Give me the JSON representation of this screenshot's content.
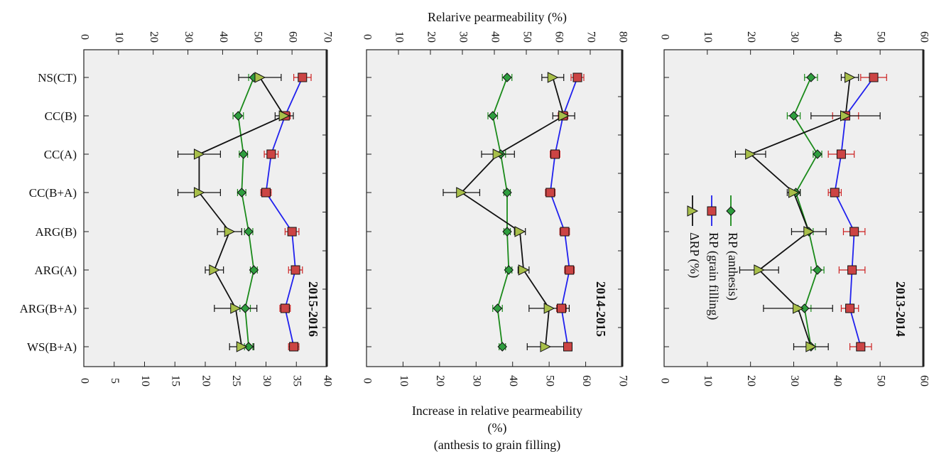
{
  "top_axis_title": "Relarive pearmeability (%)",
  "bottom_axis_title": [
    "Increase in relative pearmeability",
    "(%)",
    "(anthesis to grain filling)"
  ],
  "colors": {
    "anthesis": "#1a8a1a",
    "grain_filling": "#2020ee",
    "delta": "#111111",
    "anthesis_marker": "#2e9e3e",
    "grain_marker": "#cc4444",
    "delta_marker": "#a8bf4a",
    "error_anthesis": "#1a8a1a",
    "error_grain": "#cc2222",
    "panel_bg": "#efefef"
  },
  "legend": [
    {
      "key": "anthesis",
      "label": "RP (anthesis)"
    },
    {
      "key": "grain_filling",
      "label": "RP (grain filling)"
    },
    {
      "key": "delta",
      "label": "ΔRP (%)"
    }
  ],
  "chart_data": [
    {
      "type": "line",
      "season": "2015-2016",
      "categories": [
        "NS(CT)",
        "CC(B)",
        "CC(A)",
        "CC(B+A)",
        "ARG(B)",
        "ARG(A)",
        "ARG(B+A)",
        "WS(B+A)"
      ],
      "top_ticks": [
        "0",
        "10",
        "20",
        "30",
        "40",
        "50",
        "60",
        "70"
      ],
      "top_range": [
        0,
        70
      ],
      "bottom_ticks": [
        "0",
        "5",
        "10",
        "15",
        "20",
        "25",
        "30",
        "35",
        "40"
      ],
      "bottom_range": [
        0,
        40
      ],
      "series": [
        {
          "key": "anthesis",
          "values": [
            49,
            44.5,
            46,
            45.5,
            47.5,
            49,
            46.5,
            47.5
          ],
          "err": [
            1.5,
            1.5,
            1.2,
            1.2,
            1.2,
            1.0,
            1.5,
            1.2
          ]
        },
        {
          "key": "grain_filling",
          "values": [
            63,
            58,
            54,
            52.5,
            60,
            61,
            58,
            60.5
          ],
          "err": [
            2.5,
            1.5,
            2.0,
            1.5,
            2.0,
            2.0,
            1.5,
            1.5
          ]
        },
        {
          "key": "delta",
          "values": [
            29,
            33,
            19,
            19,
            24,
            21.5,
            25,
            26
          ],
          "err": [
            3.5,
            1.5,
            3.5,
            3.5,
            2.0,
            1.5,
            3.5,
            2.0
          ]
        }
      ]
    },
    {
      "type": "line",
      "season": "2014-2015",
      "categories": [
        "NS(CT)",
        "CC(B)",
        "CC(A)",
        "CC(B+A)",
        "ARG(B)",
        "ARG(A)",
        "ARG(B+A)",
        "WS(B+A)"
      ],
      "top_ticks": [
        "0",
        "10",
        "20",
        "30",
        "40",
        "50",
        "60",
        "70",
        "80"
      ],
      "top_range": [
        0,
        80
      ],
      "bottom_ticks": [
        "0",
        "10",
        "20",
        "30",
        "40",
        "50",
        "60",
        "70"
      ],
      "bottom_range": [
        0,
        70
      ],
      "series": [
        {
          "key": "anthesis",
          "values": [
            44,
            39.5,
            42,
            44,
            44,
            44.5,
            41,
            42.5
          ],
          "err": [
            1.5,
            1.5,
            1.5,
            1.0,
            1.0,
            1.0,
            1.5,
            1.0
          ]
        },
        {
          "key": "grain_filling",
          "values": [
            66,
            61.5,
            59,
            57.5,
            62,
            63.5,
            61,
            63
          ],
          "err": [
            2.0,
            1.5,
            1.5,
            1.5,
            1.5,
            1.5,
            1.5,
            1.0
          ]
        },
        {
          "key": "delta",
          "values": [
            51,
            54,
            36,
            26,
            42,
            43,
            50,
            49
          ],
          "err": [
            3.0,
            3.0,
            4.5,
            5.0,
            1.5,
            1.5,
            5.5,
            5.0
          ]
        }
      ]
    },
    {
      "type": "line",
      "season": "2013-2014",
      "categories": [
        "NS(CT)",
        "CC(B)",
        "CC(A)",
        "CC(B+A)",
        "ARG(B)",
        "ARG(A)",
        "ARG(B+A)",
        "WS(B+A)"
      ],
      "top_ticks": [
        "0",
        "10",
        "20",
        "30",
        "40",
        "50",
        "60"
      ],
      "top_range": [
        0,
        60
      ],
      "bottom_ticks": [
        "0",
        "10",
        "20",
        "30",
        "40",
        "50",
        "60"
      ],
      "bottom_range": [
        0,
        60
      ],
      "series": [
        {
          "key": "anthesis",
          "values": [
            34,
            30,
            35.5,
            30.5,
            33.5,
            35.5,
            32.5,
            34
          ],
          "err": [
            1.5,
            1.5,
            1.0,
            1.0,
            1.0,
            1.5,
            1.5,
            1.0
          ]
        },
        {
          "key": "grain_filling",
          "values": [
            48.5,
            42,
            41,
            39.5,
            44,
            43.5,
            43,
            45.5
          ],
          "err": [
            3.0,
            3.0,
            3.0,
            1.5,
            2.5,
            3.0,
            2.0,
            2.5
          ]
        },
        {
          "key": "delta",
          "values": [
            43,
            42,
            20,
            30,
            33.5,
            22,
            31,
            34
          ],
          "err": [
            2.0,
            8.0,
            3.5,
            1.5,
            4.0,
            4.5,
            8.0,
            4.0
          ]
        }
      ]
    }
  ]
}
